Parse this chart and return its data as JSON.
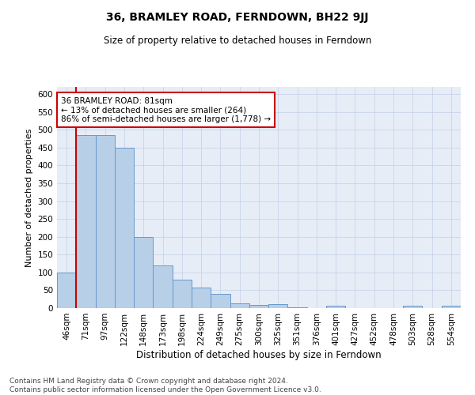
{
  "title": "36, BRAMLEY ROAD, FERNDOWN, BH22 9JJ",
  "subtitle": "Size of property relative to detached houses in Ferndown",
  "xlabel": "Distribution of detached houses by size in Ferndown",
  "ylabel": "Number of detached properties",
  "categories": [
    "46sqm",
    "71sqm",
    "97sqm",
    "122sqm",
    "148sqm",
    "173sqm",
    "198sqm",
    "224sqm",
    "249sqm",
    "275sqm",
    "300sqm",
    "325sqm",
    "351sqm",
    "376sqm",
    "401sqm",
    "427sqm",
    "452sqm",
    "478sqm",
    "503sqm",
    "528sqm",
    "554sqm"
  ],
  "values": [
    100,
    485,
    485,
    450,
    200,
    120,
    80,
    57,
    40,
    14,
    9,
    10,
    2,
    1,
    6,
    0,
    0,
    0,
    6,
    0,
    6
  ],
  "bar_color": "#b8cfe8",
  "bar_edge_color": "#6699cc",
  "bar_linewidth": 0.7,
  "vline_x": 1.0,
  "vline_color": "#cc0000",
  "vline_linewidth": 1.5,
  "annotation_text": "36 BRAMLEY ROAD: 81sqm\n← 13% of detached houses are smaller (264)\n86% of semi-detached houses are larger (1,778) →",
  "annotation_box_color": "#ffffff",
  "annotation_box_edge": "#cc0000",
  "ylim": [
    0,
    620
  ],
  "yticks": [
    0,
    50,
    100,
    150,
    200,
    250,
    300,
    350,
    400,
    450,
    500,
    550,
    600
  ],
  "grid_color": "#c8d4e8",
  "bg_color": "#e6edf7",
  "footer": "Contains HM Land Registry data © Crown copyright and database right 2024.\nContains public sector information licensed under the Open Government Licence v3.0.",
  "title_fontsize": 10,
  "subtitle_fontsize": 8.5,
  "xlabel_fontsize": 8.5,
  "ylabel_fontsize": 8,
  "tick_fontsize": 7.5,
  "footer_fontsize": 6.5,
  "ann_fontsize": 7.5
}
